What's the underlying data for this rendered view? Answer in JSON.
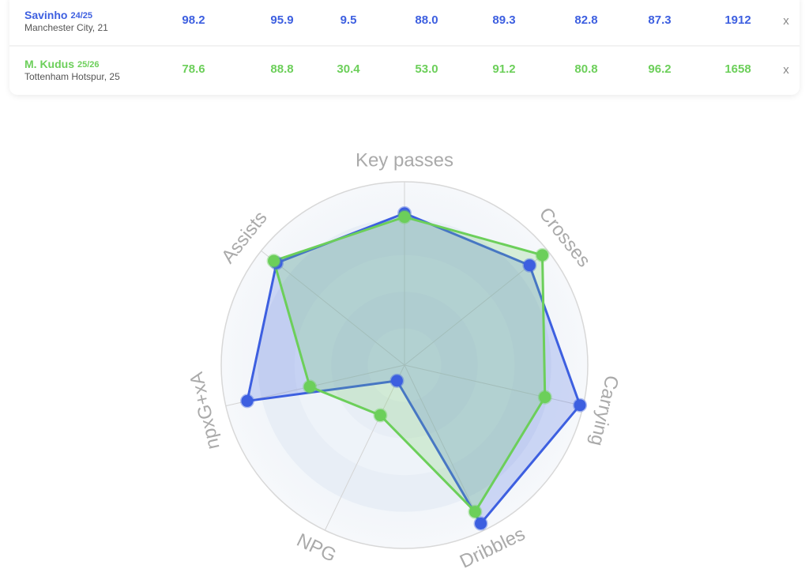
{
  "table": {
    "rows": [
      {
        "name": "Savinho",
        "season": "24/25",
        "club": "Manchester City, 21",
        "color": "#3d5fe0",
        "values": [
          "98.2",
          "95.9",
          "9.5",
          "88.0",
          "89.3",
          "82.8",
          "87.3",
          "1912"
        ],
        "remove": "x"
      },
      {
        "name": "M. Kudus",
        "season": "25/26",
        "club": "Tottenham Hotspur, 25",
        "color": "#6ccf5a",
        "values": [
          "78.6",
          "88.8",
          "30.4",
          "53.0",
          "91.2",
          "80.8",
          "96.2",
          "1658"
        ],
        "remove": "x"
      }
    ]
  },
  "chart_data": {
    "type": "radar",
    "axes": [
      "Key passes",
      "Crosses",
      "Carrying",
      "Dribbles",
      "NPG",
      "npxG+xA",
      "Assists"
    ],
    "rlim": [
      0,
      100
    ],
    "series": [
      {
        "name": "Savinho",
        "color": "#3d5fe0",
        "values": [
          82.8,
          87.3,
          98.2,
          95.9,
          9.5,
          88.0,
          89.3
        ]
      },
      {
        "name": "M. Kudus",
        "color": "#6ccf5a",
        "values": [
          80.8,
          96.2,
          78.6,
          88.8,
          30.4,
          53.0,
          91.2
        ]
      }
    ]
  }
}
